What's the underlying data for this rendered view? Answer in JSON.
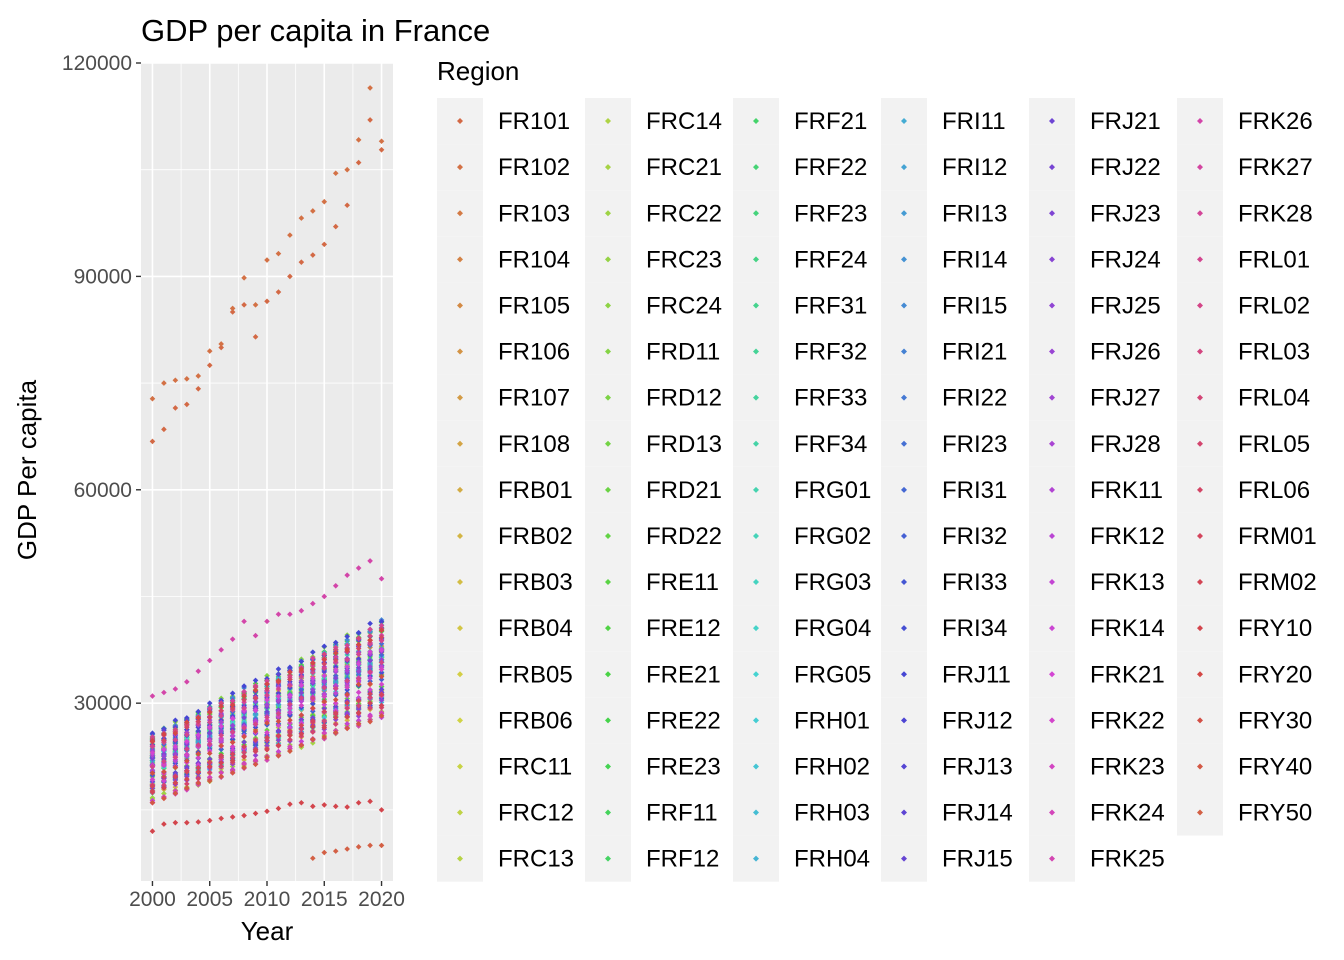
{
  "chart_data": {
    "type": "scatter",
    "title": "GDP per capita in France",
    "xlabel": "Year",
    "ylabel": "GDP Per capita",
    "x": [
      2000,
      2001,
      2002,
      2003,
      2004,
      2005,
      2006,
      2007,
      2008,
      2009,
      2010,
      2011,
      2012,
      2013,
      2014,
      2015,
      2016,
      2017,
      2018,
      2019,
      2020
    ],
    "xlim": [
      1999,
      2021
    ],
    "ylim": [
      5000,
      120000
    ],
    "x_ticks": [
      "2000",
      "2005",
      "2010",
      "2015",
      "2020"
    ],
    "y_ticks": [
      "30000",
      "60000",
      "90000",
      "120000"
    ],
    "grid": true,
    "legend": {
      "title": "Region",
      "placement": "right",
      "entries": [
        "FR101",
        "FR102",
        "FR103",
        "FR104",
        "FR105",
        "FR106",
        "FR107",
        "FR108",
        "FRB01",
        "FRB02",
        "FRB03",
        "FRB04",
        "FRB05",
        "FRB06",
        "FRC11",
        "FRC12",
        "FRC13",
        "FRC14",
        "FRC21",
        "FRC22",
        "FRC23",
        "FRC24",
        "FRD11",
        "FRD12",
        "FRD13",
        "FRD21",
        "FRD22",
        "FRE11",
        "FRE12",
        "FRE21",
        "FRE22",
        "FRE23",
        "FRF11",
        "FRF12",
        "FRF21",
        "FRF22",
        "FRF23",
        "FRF24",
        "FRF31",
        "FRF32",
        "FRF33",
        "FRF34",
        "FRG01",
        "FRG02",
        "FRG03",
        "FRG04",
        "FRG05",
        "FRH01",
        "FRH02",
        "FRH03",
        "FRH04",
        "FRI11",
        "FRI12",
        "FRI13",
        "FRI14",
        "FRI15",
        "FRI21",
        "FRI22",
        "FRI23",
        "FRI31",
        "FRI32",
        "FRI33",
        "FRI34",
        "FRJ11",
        "FRJ12",
        "FRJ13",
        "FRJ14",
        "FRJ15",
        "FRJ21",
        "FRJ22",
        "FRJ23",
        "FRJ24",
        "FRJ25",
        "FRJ26",
        "FRJ27",
        "FRJ28",
        "FRK11",
        "FRK12",
        "FRK13",
        "FRK14",
        "FRK21",
        "FRK22",
        "FRK23",
        "FRK24",
        "FRK25",
        "FRK26",
        "FRK27",
        "FRK28",
        "FRL01",
        "FRL02",
        "FRL03",
        "FRL04",
        "FRL05",
        "FRL06",
        "FRM01",
        "FRM02",
        "FRY10",
        "FRY20",
        "FRY30",
        "FRY40",
        "FRY50"
      ]
    },
    "highlighted_series": [
      {
        "name": "FR101",
        "values": [
          66800,
          68500,
          71500,
          72000,
          74200,
          77500,
          80000,
          85000,
          86000,
          81500,
          86500,
          87800,
          90000,
          92000,
          93000,
          94500,
          97000,
          100000,
          106000,
          112000,
          107800
        ]
      },
      {
        "name": "FR102",
        "values": [
          72800,
          75000,
          75400,
          75600,
          76000,
          79500,
          80500,
          85500,
          89800,
          86000,
          92300,
          93200,
          95800,
          98200,
          99200,
          100500,
          104500,
          105000,
          109200,
          116500,
          109000
        ]
      },
      {
        "name": "FRY10",
        "values": [
          12000,
          13000,
          13200,
          13200,
          13300,
          13500,
          13800,
          14000,
          14200,
          14500,
          14800,
          15200,
          15800,
          16000,
          15500,
          15700,
          15500,
          15400,
          16000,
          16200,
          15000
        ]
      },
      {
        "name": "FRY50",
        "values": [
          null,
          null,
          null,
          null,
          null,
          null,
          null,
          null,
          null,
          null,
          null,
          null,
          null,
          null,
          8200,
          9000,
          9200,
          9500,
          9800,
          10000,
          10000
        ]
      },
      {
        "name": "FRK26",
        "values": [
          31000,
          31500,
          32000,
          33000,
          34500,
          36000,
          37500,
          39000,
          41500,
          39500,
          41500,
          42500,
          42500,
          43000,
          44000,
          45000,
          46500,
          48000,
          49000,
          50000,
          47500
        ]
      }
    ],
    "bulk_band": {
      "description_ranges": "remaining regions",
      "min": [
        16000,
        28000
      ],
      "max": [
        26000,
        42000
      ]
    }
  }
}
